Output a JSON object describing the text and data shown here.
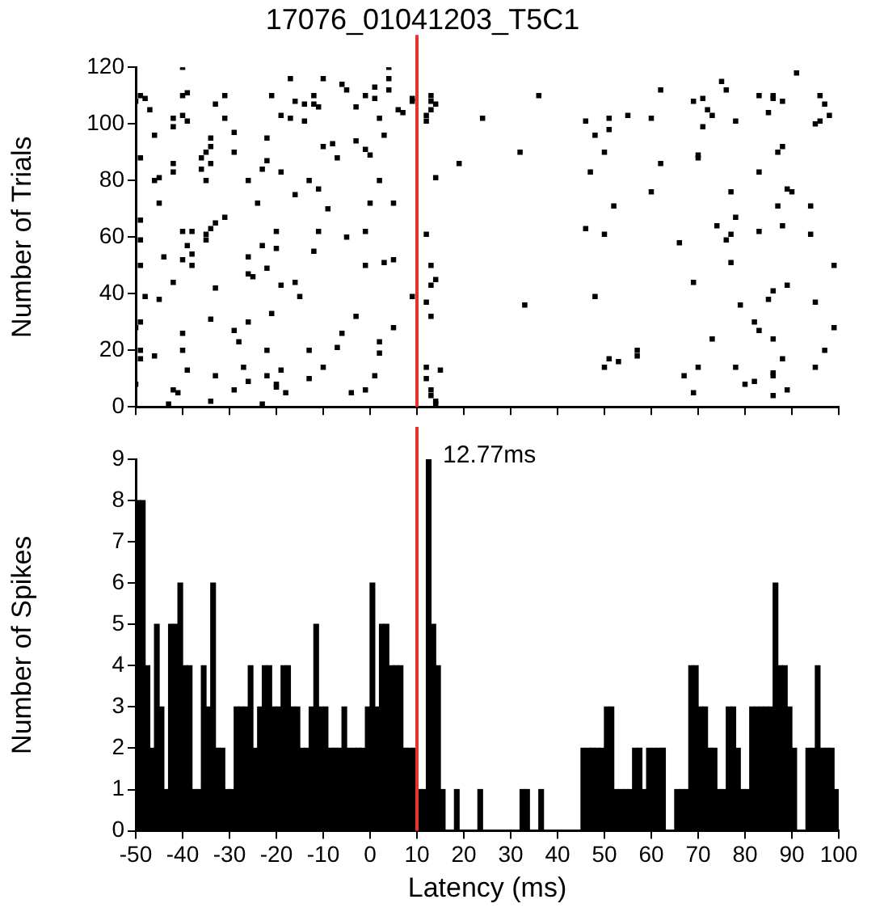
{
  "chart_data": [
    {
      "type": "scatter",
      "title": "17076_01041203_T5C1",
      "ylabel": "Number of Trials",
      "color": "#000000",
      "marker": "square",
      "x": [
        -40,
        -49,
        -50,
        -48,
        -47,
        -40,
        -39,
        -40,
        -39,
        -42,
        -42,
        -46,
        -31,
        -33,
        -31,
        -29,
        -29,
        -34,
        -34,
        -35,
        -36,
        -36,
        -34,
        -42,
        -42,
        -45,
        -46,
        -35,
        -45,
        -49,
        -49,
        -49,
        -49,
        -40,
        -38,
        -35,
        -35,
        -34,
        -33,
        -31,
        -39,
        -38,
        -40,
        -38,
        -44,
        -42,
        -33,
        -48,
        -45,
        -49,
        -49,
        -46,
        -40,
        -40,
        -39,
        -34,
        -33,
        -29,
        -28,
        -26,
        -26,
        -25,
        -26,
        -24,
        -26,
        -23,
        -22,
        -22,
        -21,
        -19,
        -17,
        -16,
        -17,
        -14,
        -14,
        -12,
        -12,
        -11,
        -10,
        -10,
        -8,
        -7,
        -6,
        -5,
        -3,
        -3,
        -1,
        -1,
        0,
        1,
        -19,
        -16,
        -13,
        -11,
        -9,
        -20,
        -23,
        -20,
        -22,
        -19,
        -16,
        -15,
        -12,
        -11,
        -5,
        -1,
        -1,
        -21,
        -22,
        -27,
        -26,
        -29,
        -23,
        -22,
        -20,
        -20,
        -18,
        -19,
        -13,
        -13,
        -10,
        -7,
        -6,
        -3,
        -4,
        -1,
        1,
        0,
        -43,
        -42,
        -41,
        -34,
        -49,
        -50,
        -50,
        4,
        4,
        4,
        1,
        2,
        3,
        6,
        7,
        9,
        9,
        13,
        13,
        14,
        13,
        12,
        12,
        24,
        36,
        46,
        48,
        50,
        32,
        19,
        47,
        14,
        2,
        5,
        12,
        46,
        50,
        3,
        5,
        13,
        14,
        13,
        9,
        12,
        13,
        33,
        48,
        5,
        2,
        2,
        12,
        15,
        12,
        13,
        13,
        14,
        14,
        50,
        51,
        91,
        75,
        62,
        76,
        86,
        83,
        86,
        96,
        97,
        69,
        71,
        88,
        72,
        73,
        85,
        98,
        51,
        55,
        60,
        51,
        71,
        78,
        96,
        95,
        62,
        70,
        70,
        83,
        87,
        88,
        60,
        77,
        89,
        90,
        52,
        87,
        94,
        74,
        78,
        83,
        88,
        66,
        76,
        77,
        94,
        77,
        99,
        69,
        89,
        85,
        86,
        95,
        79,
        82,
        83,
        86,
        73,
        99,
        97,
        53,
        57,
        57,
        70,
        67,
        78,
        86,
        86,
        88,
        95,
        80,
        82,
        69,
        89,
        86
      ],
      "values": [
        120,
        110,
        108,
        109,
        105,
        110,
        111,
        103,
        101,
        102,
        99,
        96,
        110,
        107,
        102,
        97,
        90,
        95,
        92,
        90,
        88,
        84,
        86,
        86,
        83,
        81,
        80,
        80,
        72,
        88,
        66,
        59,
        50,
        62,
        62,
        61,
        59,
        63,
        65,
        67,
        57,
        54,
        52,
        50,
        53,
        44,
        42,
        39,
        38,
        30,
        17,
        18,
        26,
        20,
        13,
        31,
        11,
        27,
        23,
        30,
        47,
        46,
        53,
        72,
        80,
        84,
        87,
        95,
        110,
        103,
        116,
        108,
        102,
        101,
        107,
        110,
        107,
        106,
        116,
        92,
        93,
        88,
        114,
        112,
        106,
        94,
        110,
        91,
        89,
        113,
        83,
        75,
        80,
        77,
        70,
        62,
        57,
        56,
        49,
        43,
        44,
        39,
        55,
        62,
        60,
        62,
        50,
        33,
        20,
        14,
        9,
        6,
        1,
        11,
        8,
        7,
        5,
        13,
        10,
        20,
        14,
        21,
        26,
        32,
        5,
        6,
        11,
        72,
        1,
        6,
        5,
        2,
        20,
        28,
        8,
        120,
        116,
        112,
        109,
        102,
        96,
        105,
        104,
        108,
        109,
        110,
        108,
        107,
        105,
        103,
        101,
        102,
        110,
        101,
        96,
        90,
        90,
        86,
        83,
        81,
        80,
        72,
        61,
        63,
        61,
        51,
        52,
        50,
        45,
        43,
        39,
        37,
        32,
        36,
        39,
        28,
        23,
        19,
        14,
        13,
        10,
        6,
        4,
        2,
        1,
        14,
        17,
        118,
        115,
        112,
        112,
        110,
        110,
        109,
        110,
        107,
        108,
        109,
        108,
        105,
        103,
        104,
        103,
        102,
        103,
        102,
        98,
        99,
        101,
        101,
        100,
        86,
        88,
        89,
        83,
        90,
        92,
        76,
        76,
        77,
        76,
        71,
        71,
        71,
        64,
        67,
        62,
        64,
        58,
        59,
        61,
        61,
        51,
        50,
        44,
        43,
        38,
        41,
        37,
        36,
        30,
        27,
        24,
        24,
        28,
        20,
        16,
        20,
        18,
        14,
        11,
        14,
        12,
        11,
        17,
        14,
        8,
        9,
        5,
        6,
        4
      ],
      "xlim": [
        -50,
        100
      ],
      "xticks": [
        -50,
        -40,
        -30,
        -20,
        -10,
        0,
        10,
        20,
        30,
        40,
        50,
        60,
        70,
        80,
        90,
        100
      ],
      "ylim": [
        0,
        120
      ],
      "yticks": [
        0,
        20,
        40,
        60,
        80,
        100,
        120
      ],
      "tick_labels": "y",
      "ref_lines": [
        {
          "axis": "x",
          "value": 10,
          "color": "#e8322b"
        }
      ]
    },
    {
      "type": "histogram",
      "xlabel": "Latency (ms)",
      "ylabel": "Number of Spikes",
      "color": "#000000",
      "bins": [
        -50,
        -49,
        -48,
        -47,
        -46,
        -45,
        -44,
        -43,
        -42,
        -41,
        -40,
        -39,
        -38,
        -37,
        -36,
        -35,
        -34,
        -33,
        -32,
        -31,
        -30,
        -29,
        -28,
        -27,
        -26,
        -25,
        -24,
        -23,
        -22,
        -21,
        -20,
        -19,
        -18,
        -17,
        -16,
        -15,
        -14,
        -13,
        -12,
        -11,
        -10,
        -9,
        -8,
        -7,
        -6,
        -5,
        -4,
        -3,
        -2,
        -1,
        0,
        1,
        2,
        3,
        4,
        5,
        6,
        7,
        8,
        9,
        10,
        11,
        12,
        13,
        14,
        15,
        16,
        17,
        18,
        19,
        20,
        21,
        22,
        23,
        24,
        25,
        26,
        27,
        28,
        29,
        30,
        31,
        32,
        33,
        34,
        35,
        36,
        37,
        38,
        39,
        40,
        41,
        42,
        43,
        44,
        45,
        46,
        47,
        48,
        49,
        50,
        51,
        52,
        53,
        54,
        55,
        56,
        57,
        58,
        59,
        60,
        61,
        62,
        63,
        64,
        65,
        66,
        67,
        68,
        69,
        70,
        71,
        72,
        73,
        74,
        75,
        76,
        77,
        78,
        79,
        80,
        81,
        82,
        83,
        84,
        85,
        86,
        87,
        88,
        89,
        90,
        91,
        92,
        93,
        94,
        95,
        96,
        97,
        98,
        99,
        100
      ],
      "values": [
        8,
        8,
        4,
        2,
        5,
        3,
        1,
        5,
        5,
        6,
        4,
        4,
        1,
        1,
        4,
        3,
        6,
        2,
        2,
        1,
        1,
        3,
        3,
        3,
        4,
        2,
        3,
        4,
        4,
        3,
        3,
        4,
        4,
        3,
        3,
        2,
        2,
        3,
        5,
        3,
        3,
        2,
        2,
        2,
        3,
        2,
        2,
        2,
        2,
        3,
        6,
        3,
        5,
        5,
        4,
        4,
        4,
        2,
        2,
        2,
        1,
        1,
        9,
        5,
        4,
        1,
        0,
        0,
        1,
        0,
        0,
        0,
        0,
        1,
        0,
        0,
        0,
        0,
        0,
        0,
        0,
        0,
        1,
        1,
        0,
        0,
        1,
        0,
        0,
        0,
        0,
        0,
        0,
        0,
        0,
        2,
        2,
        2,
        2,
        2,
        3,
        3,
        1,
        1,
        1,
        1,
        2,
        2,
        1,
        2,
        2,
        2,
        2,
        0,
        0,
        1,
        1,
        1,
        4,
        4,
        3,
        3,
        2,
        2,
        1,
        1,
        3,
        3,
        2,
        1,
        1,
        3,
        3,
        3,
        3,
        3,
        6,
        4,
        4,
        3,
        2,
        0,
        0,
        2,
        2,
        4,
        2,
        2,
        2,
        1
      ],
      "xlim": [
        -50,
        100
      ],
      "xticks": [
        -50,
        -40,
        -30,
        -20,
        -10,
        0,
        10,
        20,
        30,
        40,
        50,
        60,
        70,
        80,
        90,
        100
      ],
      "ylim": [
        0,
        9
      ],
      "yticks": [
        0,
        1,
        2,
        3,
        4,
        5,
        6,
        7,
        8,
        9
      ],
      "ref_lines": [
        {
          "axis": "x",
          "value": 10,
          "color": "#e8322b"
        }
      ],
      "annotations": [
        {
          "text": "12.77ms",
          "x": 12.77,
          "y": 9
        }
      ]
    }
  ]
}
